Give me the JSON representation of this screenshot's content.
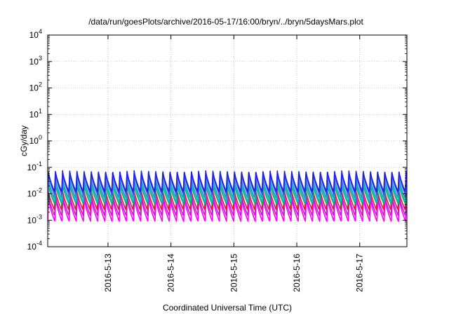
{
  "chart_data": {
    "type": "line",
    "title": "/data/run/goesPlots/archive/2016-05-17/16:00/bryn/../bryn/5daysMars.plot",
    "xlabel": "Coordinated Universal Time (UTC)",
    "ylabel": "cGy/day",
    "y_scale": "log",
    "ylim": [
      0.0001,
      10000
    ],
    "xlim": [
      "2016-05-12 01:00",
      "2016-05-17 18:00"
    ],
    "grid": true,
    "legend": "none",
    "x_ticks": [
      {
        "at": "2016-05-13 00:00",
        "label": "2016-5-13"
      },
      {
        "at": "2016-05-14 00:00",
        "label": "2016-5-14"
      },
      {
        "at": "2016-05-15 00:00",
        "label": "2016-5-15"
      },
      {
        "at": "2016-05-16 00:00",
        "label": "2016-5-16"
      },
      {
        "at": "2016-05-17 00:00",
        "label": "2016-5-17"
      }
    ],
    "y_ticks": [
      {
        "value": 0.0001,
        "base": "10",
        "exp": "-4"
      },
      {
        "value": 0.001,
        "base": "10",
        "exp": "-3"
      },
      {
        "value": 0.01,
        "base": "10",
        "exp": "-2"
      },
      {
        "value": 0.1,
        "base": "10",
        "exp": "-1"
      },
      {
        "value": 1,
        "base": "10",
        "exp": "0"
      },
      {
        "value": 10,
        "base": "10",
        "exp": "1"
      },
      {
        "value": 100,
        "base": "10",
        "exp": "2"
      },
      {
        "value": 1000,
        "base": "10",
        "exp": "3"
      },
      {
        "value": 10000,
        "base": "10",
        "exp": "4"
      }
    ],
    "oscillation_period_hours": 2.73,
    "series": [
      {
        "color": "#1e1ee8",
        "peak": 0.075,
        "trough": 0.012
      },
      {
        "color": "#2b57d8",
        "peak": 0.06,
        "trough": 0.009
      },
      {
        "color": "#3a8ad0",
        "peak": 0.045,
        "trough": 0.007
      },
      {
        "color": "#00c8c8",
        "peak": 0.03,
        "trough": 0.005
      },
      {
        "color": "#1aa860",
        "peak": 0.022,
        "trough": 0.004
      },
      {
        "color": "#d81e3c",
        "peak": 0.016,
        "trough": 0.0025
      },
      {
        "color": "#c81ec8",
        "peak": 0.01,
        "trough": 0.0015
      },
      {
        "color": "#ff00ff",
        "peak": 0.007,
        "trough": 0.0009
      }
    ]
  }
}
